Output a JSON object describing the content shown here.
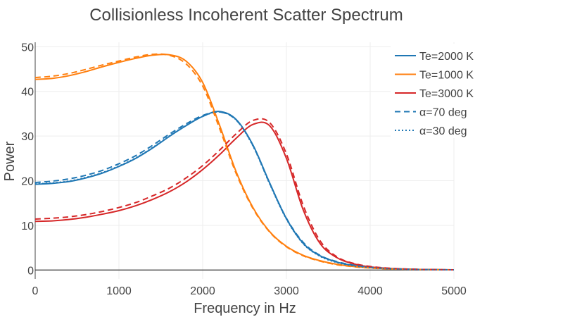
{
  "chart_data": {
    "type": "line",
    "title": "Collisionless Incoherent Scatter Spectrum",
    "xlabel": "Frequency in Hz",
    "ylabel": "Power",
    "xlim": [
      0,
      5000
    ],
    "ylim": [
      -2,
      51
    ],
    "x_ticks": [
      0,
      1000,
      2000,
      3000,
      4000,
      5000
    ],
    "y_ticks": [
      0,
      10,
      20,
      30,
      40,
      50
    ],
    "grid": true,
    "legend_position": "top-right",
    "x": [
      0,
      200,
      400,
      600,
      800,
      1000,
      1200,
      1400,
      1600,
      1800,
      2000,
      2200,
      2400,
      2600,
      2800,
      3000,
      3200,
      3400,
      3600,
      3800,
      4000,
      4200,
      4400,
      4600,
      4800,
      5000
    ],
    "series": [
      {
        "name": "Te=2000 K",
        "color": "#1f77b4",
        "dash": "solid",
        "values": [
          19.2,
          19.4,
          19.8,
          20.6,
          21.7,
          23.2,
          25.0,
          27.3,
          29.9,
          32.3,
          34.4,
          35.5,
          33.7,
          28.0,
          19.5,
          11.5,
          6.0,
          3.2,
          1.8,
          1.0,
          0.6,
          0.35,
          0.2,
          0.12,
          0.07,
          0.05
        ]
      },
      {
        "name": "Te=1000 K",
        "color": "#ff7f0e",
        "dash": "solid",
        "values": [
          42.7,
          42.9,
          43.5,
          44.4,
          45.5,
          46.5,
          47.4,
          48.1,
          48.2,
          46.8,
          42.0,
          32.5,
          22.0,
          14.0,
          8.6,
          5.3,
          3.3,
          2.1,
          1.3,
          0.8,
          0.5,
          0.3,
          0.2,
          0.12,
          0.07,
          0.05
        ]
      },
      {
        "name": "Te=3000 K",
        "color": "#d62728",
        "dash": "solid",
        "values": [
          10.9,
          11.0,
          11.3,
          11.8,
          12.5,
          13.3,
          14.4,
          15.8,
          17.5,
          19.7,
          22.5,
          25.8,
          29.5,
          32.6,
          32.3,
          25.0,
          13.5,
          6.0,
          2.8,
          1.4,
          0.7,
          0.4,
          0.22,
          0.13,
          0.08,
          0.05
        ]
      },
      {
        "name": "α=70 deg",
        "color": "#1f77b4",
        "dash": "dashed",
        "values": [
          19.6,
          19.9,
          20.4,
          21.2,
          22.3,
          23.8,
          25.6,
          27.9,
          30.4,
          32.7,
          34.6,
          35.4,
          33.6,
          27.9,
          19.4,
          11.6,
          6.2,
          3.3,
          1.9,
          1.1,
          0.65,
          0.38,
          0.22,
          0.13,
          0.08,
          0.05
        ]
      },
      {
        "name": "Te=1000 K, α=70 deg",
        "color": "#ff7f0e",
        "dash": "dashed",
        "values": [
          43.1,
          43.4,
          44.0,
          44.9,
          45.9,
          46.8,
          47.7,
          48.3,
          48.1,
          46.2,
          41.2,
          31.8,
          21.6,
          13.8,
          8.5,
          5.2,
          3.2,
          2.0,
          1.2,
          0.75,
          0.45,
          0.28,
          0.18,
          0.11,
          0.07,
          0.05
        ]
      },
      {
        "name": "Te=3000 K, α=70 deg",
        "color": "#d62728",
        "dash": "dashed",
        "values": [
          11.4,
          11.6,
          11.9,
          12.4,
          13.1,
          14.0,
          15.1,
          16.6,
          18.3,
          20.6,
          23.4,
          26.8,
          30.5,
          33.5,
          33.0,
          26.0,
          14.5,
          6.6,
          3.0,
          1.5,
          0.8,
          0.45,
          0.25,
          0.14,
          0.08,
          0.05
        ]
      },
      {
        "name": "α=30 deg",
        "color": "#1f77b4",
        "dash": "dotted",
        "values": [
          19.3,
          19.5,
          19.9,
          20.7,
          21.8,
          23.3,
          25.1,
          27.4,
          30.0,
          32.4,
          34.4,
          35.4,
          33.6,
          27.8,
          19.3,
          11.4,
          5.9,
          3.1,
          1.7,
          0.95,
          0.55,
          0.32,
          0.18,
          0.11,
          0.06,
          0.04
        ]
      }
    ],
    "legend": [
      {
        "label": "Te=2000 K",
        "color": "#1f77b4",
        "dash": "solid"
      },
      {
        "label": "Te=1000 K",
        "color": "#ff7f0e",
        "dash": "solid"
      },
      {
        "label": "Te=3000 K",
        "color": "#d62728",
        "dash": "solid"
      },
      {
        "label": "α=70 deg",
        "color": "#1f77b4",
        "dash": "dashed"
      },
      {
        "label": "α=30 deg",
        "color": "#1f77b4",
        "dash": "dotted"
      }
    ]
  }
}
